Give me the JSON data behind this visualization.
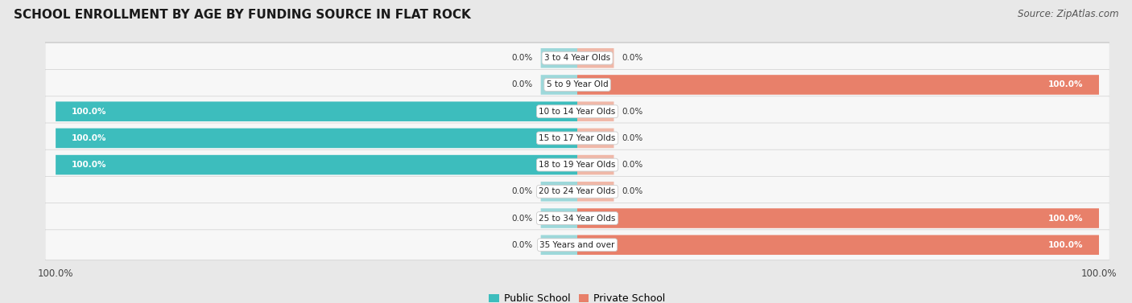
{
  "title": "SCHOOL ENROLLMENT BY AGE BY FUNDING SOURCE IN FLAT ROCK",
  "source": "Source: ZipAtlas.com",
  "categories": [
    "3 to 4 Year Olds",
    "5 to 9 Year Old",
    "10 to 14 Year Olds",
    "15 to 17 Year Olds",
    "18 to 19 Year Olds",
    "20 to 24 Year Olds",
    "25 to 34 Year Olds",
    "35 Years and over"
  ],
  "public_values": [
    0.0,
    0.0,
    100.0,
    100.0,
    100.0,
    0.0,
    0.0,
    0.0
  ],
  "private_values": [
    0.0,
    100.0,
    0.0,
    0.0,
    0.0,
    0.0,
    100.0,
    100.0
  ],
  "public_color": "#3DBDBD",
  "private_color": "#E8806A",
  "public_color_light": "#9DD8DA",
  "private_color_light": "#F0B8A8",
  "bg_color": "#e8e8e8",
  "row_bg_color": "#f5f5f5",
  "row_bg_color_alt": "#ebebeb",
  "axis_label_color": "#555555",
  "legend_labels": [
    "Public School",
    "Private School"
  ],
  "title_fontsize": 11,
  "source_fontsize": 8.5,
  "label_fontsize": 7.5,
  "value_fontsize": 7.5,
  "legend_fontsize": 9
}
